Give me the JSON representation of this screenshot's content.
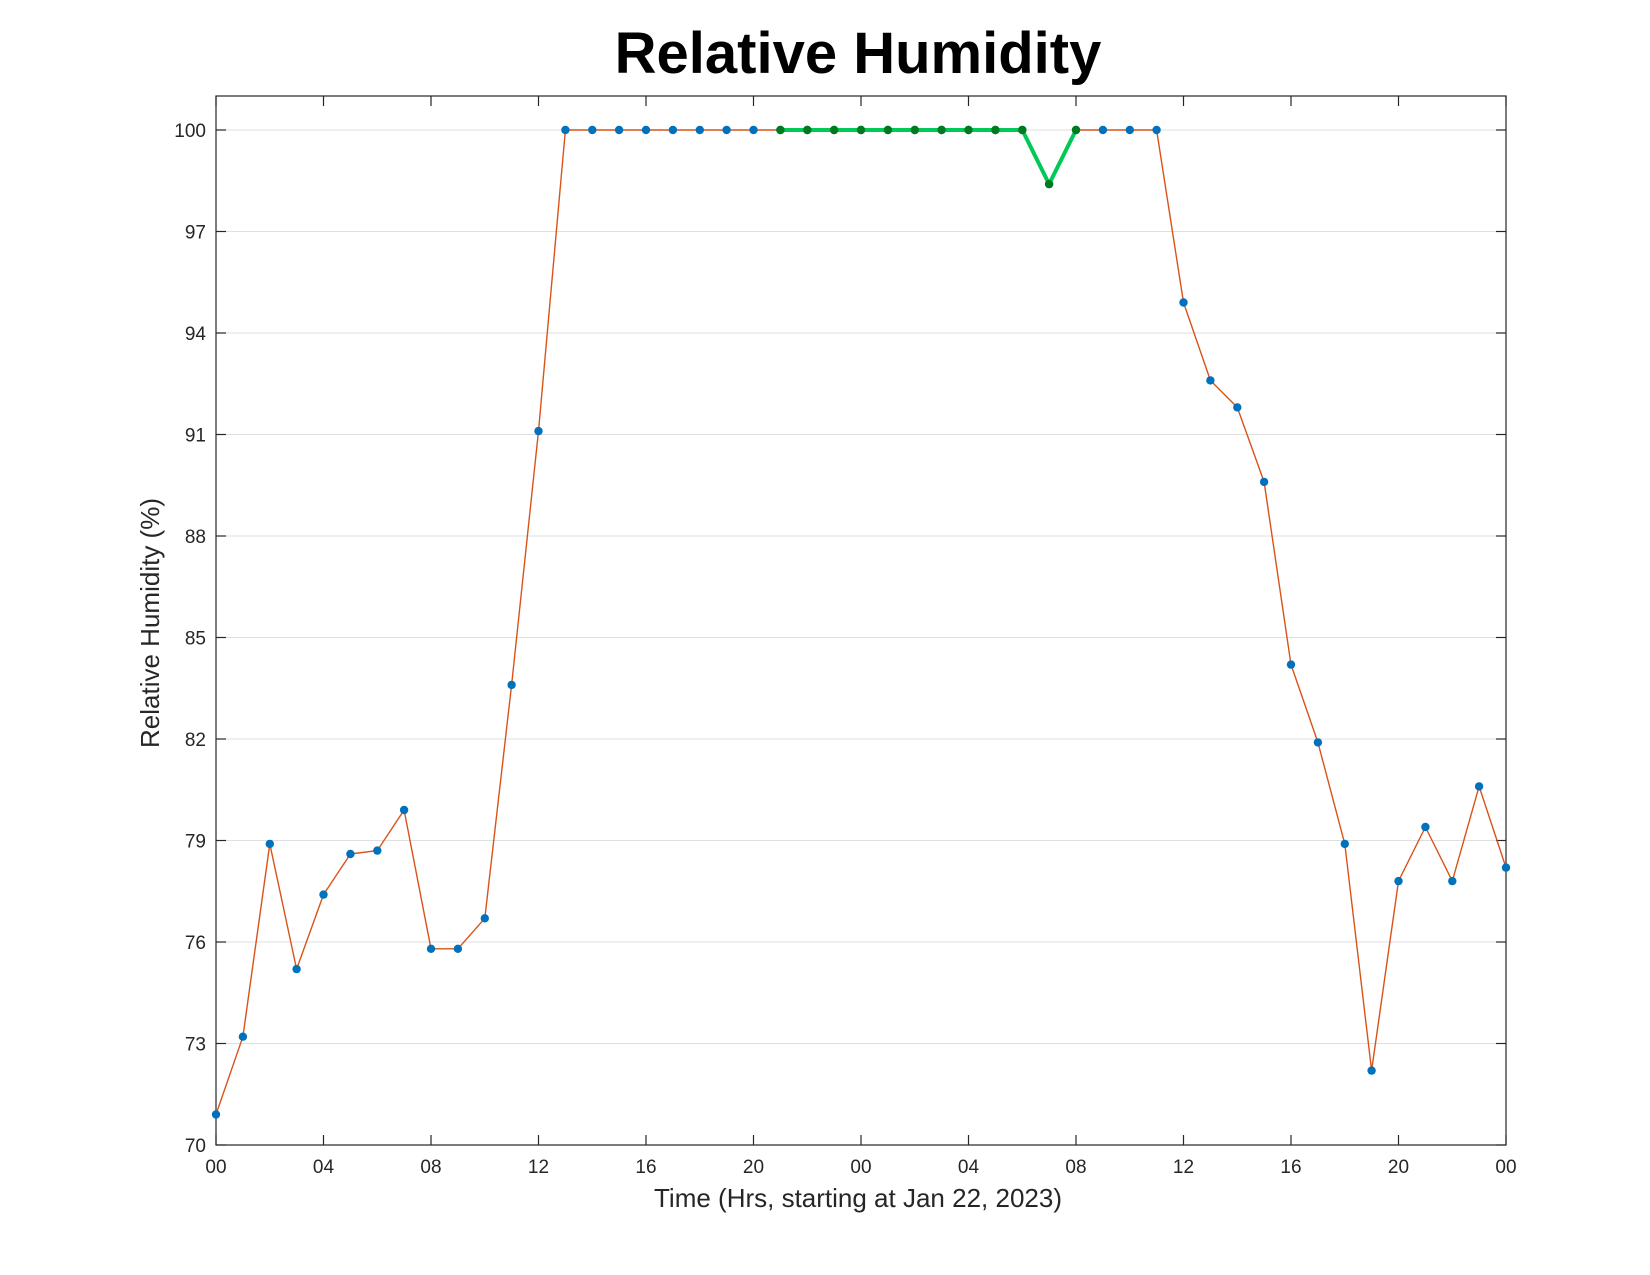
{
  "chart_data": {
    "type": "line",
    "title": "Relative Humidity",
    "xlabel": "Time (Hrs, starting at Jan 22, 2023)",
    "ylabel": "Relative Humidity (%)",
    "xlim": [
      0,
      48
    ],
    "ylim": [
      70,
      101
    ],
    "yticks": [
      70,
      73,
      76,
      79,
      82,
      85,
      88,
      91,
      94,
      97,
      100
    ],
    "xticks": [
      0,
      4,
      8,
      12,
      16,
      20,
      24,
      28,
      32,
      36,
      40,
      44,
      48
    ],
    "xtick_labels": [
      "00",
      "04",
      "08",
      "12",
      "16",
      "20",
      "00",
      "04",
      "08",
      "12",
      "16",
      "20",
      "00"
    ],
    "grid": "horizontal",
    "series": [
      {
        "line_color": "#d95319",
        "marker_color": "#0072bd",
        "x": [
          0,
          1,
          2,
          3,
          4,
          5,
          6,
          7,
          8,
          9,
          10,
          11,
          12,
          13,
          14,
          15,
          16,
          17,
          18,
          19,
          20,
          21,
          22,
          23,
          24,
          25,
          26,
          27,
          28,
          29,
          30,
          31,
          32,
          33,
          34,
          35,
          36,
          37,
          38,
          39,
          40,
          41,
          42,
          43,
          44,
          45,
          46,
          47,
          48
        ],
        "y": [
          70.9,
          73.2,
          78.9,
          75.2,
          77.4,
          78.6,
          78.7,
          79.9,
          75.8,
          75.8,
          76.7,
          83.6,
          91.1,
          100,
          100,
          100,
          100,
          100,
          100,
          100,
          100,
          100,
          100,
          100,
          100,
          100,
          100,
          100,
          100,
          100,
          100,
          98.4,
          100,
          100,
          100,
          100,
          94.9,
          92.6,
          91.8,
          89.6,
          84.2,
          81.9,
          78.9,
          72.2,
          77.8,
          79.4,
          77.8,
          80.6,
          78.2
        ]
      },
      {
        "line_color": "#00c957",
        "marker_color": "#007a1f",
        "x": [
          21,
          22,
          23,
          24,
          25,
          26,
          27,
          28,
          29,
          30,
          31,
          32
        ],
        "y": [
          100,
          100,
          100,
          100,
          100,
          100,
          100,
          100,
          100,
          100,
          98.4,
          100
        ]
      }
    ]
  }
}
